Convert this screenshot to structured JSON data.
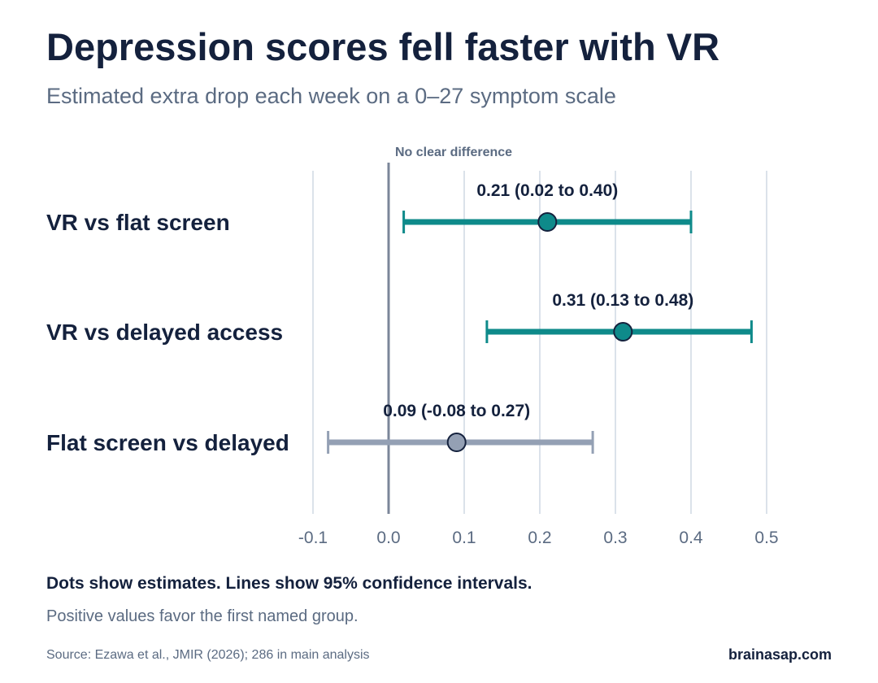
{
  "header": {
    "title": "Depression scores fell faster with VR",
    "subtitle": "Estimated extra drop each week on a 0–27 symptom scale"
  },
  "chart_data": {
    "type": "forest",
    "reference_line": {
      "x": 0.0,
      "label": "No clear difference"
    },
    "xlim": [
      -0.1,
      0.5
    ],
    "x_ticks": [
      -0.1,
      0.0,
      0.1,
      0.2,
      0.3,
      0.4,
      0.5
    ],
    "x_tick_labels": [
      "-0.1",
      "0.0",
      "0.1",
      "0.2",
      "0.3",
      "0.4",
      "0.5"
    ],
    "grid": true,
    "rows": [
      {
        "label": "VR vs flat screen",
        "estimate": 0.21,
        "lower": 0.02,
        "upper": 0.4,
        "annotation": "0.21 (0.02 to 0.40)",
        "color": "#0e8a8a"
      },
      {
        "label": "VR vs delayed access",
        "estimate": 0.31,
        "lower": 0.13,
        "upper": 0.48,
        "annotation": "0.31 (0.13 to 0.48)",
        "color": "#0e8a8a"
      },
      {
        "label": "Flat screen vs delayed",
        "estimate": 0.09,
        "lower": -0.08,
        "upper": 0.27,
        "annotation": "0.09 (-0.08 to 0.27)",
        "color": "#94a0b4"
      }
    ]
  },
  "footer": {
    "note_primary": "Dots show estimates. Lines show 95% confidence intervals.",
    "note_secondary": "Positive values favor the first named group.",
    "source": "Source: Ezawa et al., JMIR (2026); 286 in main analysis",
    "brand": "brainasap.com"
  }
}
